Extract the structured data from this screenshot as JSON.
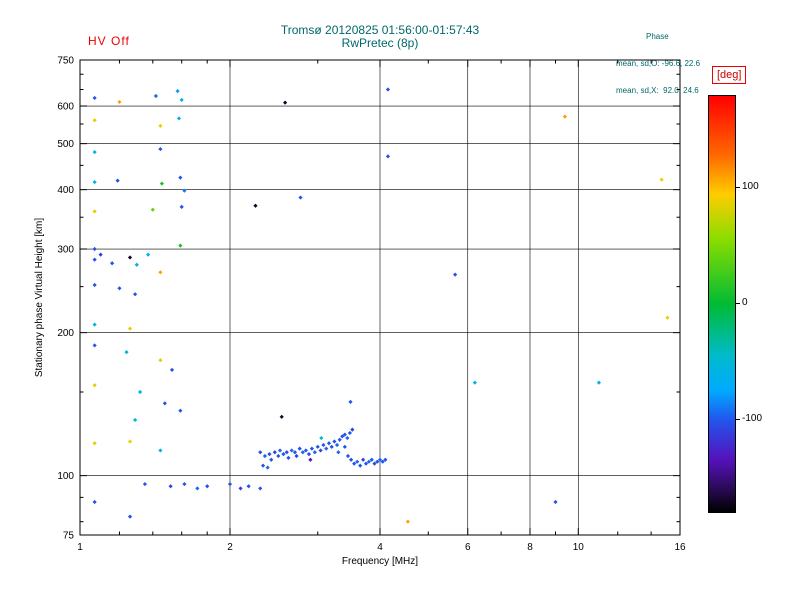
{
  "header": {
    "hv_off": "HV Off"
  },
  "stats": {
    "heading": "Phase",
    "o_line": "mean, sd,O: -96.6, 22.6",
    "x_line": "mean, sd,X:  92.0, 24.6"
  },
  "colors": {
    "accent_red": "#ee0000",
    "title_teal": "#006868",
    "axis_black": "#000000",
    "background": "#ffffff"
  },
  "chart_data": {
    "type": "scatter",
    "title": "Tromsø 20120825 01:56:00-01:57:43",
    "subtitle": "RwPretec (8p)",
    "xlabel": "Frequency [MHz]",
    "ylabel": "Stationary phase Virtual Height [km]",
    "xscale": "log",
    "yscale": "log",
    "xlim": [
      1,
      16
    ],
    "ylim": [
      75,
      750
    ],
    "x_major_ticks": [
      1,
      2,
      4,
      6,
      8,
      10,
      16
    ],
    "x_grid": [
      2,
      4,
      6,
      8,
      10
    ],
    "x_minor_ticks": [
      1.2,
      1.4,
      1.6,
      1.8,
      3,
      5,
      7,
      9,
      12,
      14
    ],
    "y_major_ticks": [
      75,
      100,
      200,
      300,
      400,
      500,
      600,
      750
    ],
    "y_grid": [
      100,
      200,
      300,
      400,
      500,
      600
    ],
    "y_minor_ticks": [
      80,
      90,
      150,
      250,
      350,
      450,
      550,
      650,
      700
    ],
    "legend_position": "right-colorbar",
    "grid": true,
    "colorbar": {
      "label": "[deg]",
      "ticks": [
        100,
        0,
        -100
      ],
      "min": -180,
      "max": 180,
      "color_map": [
        [
          180,
          "#ff0000"
        ],
        [
          130,
          "#ff6600"
        ],
        [
          95,
          "#ffcc00"
        ],
        [
          55,
          "#88dd00"
        ],
        [
          0,
          "#00bb33"
        ],
        [
          -45,
          "#00bbcc"
        ],
        [
          -75,
          "#00aaff"
        ],
        [
          -100,
          "#2255ee"
        ],
        [
          -135,
          "#5511bb"
        ],
        [
          -160,
          "#2a0a55"
        ],
        [
          -180,
          "#000000"
        ]
      ]
    },
    "points_format": [
      "frequency_MHz",
      "virtual_height_km",
      "phase_deg"
    ],
    "points": [
      [
        1.07,
        624,
        -100
      ],
      [
        1.2,
        612,
        110
      ],
      [
        1.42,
        630,
        -95
      ],
      [
        1.57,
        645,
        -80
      ],
      [
        1.6,
        618,
        -60
      ],
      [
        1.07,
        560,
        85
      ],
      [
        1.58,
        565,
        -55
      ],
      [
        1.45,
        545,
        90
      ],
      [
        1.07,
        480,
        -60
      ],
      [
        1.45,
        487,
        -100
      ],
      [
        1.07,
        415,
        -60
      ],
      [
        1.19,
        418,
        -100
      ],
      [
        1.46,
        412,
        10
      ],
      [
        1.59,
        424,
        -100
      ],
      [
        1.62,
        398,
        -90
      ],
      [
        1.07,
        360,
        85
      ],
      [
        1.4,
        363,
        40
      ],
      [
        1.6,
        368,
        -100
      ],
      [
        2.25,
        370,
        -170
      ],
      [
        2.77,
        385,
        -100
      ],
      [
        1.07,
        300,
        -100
      ],
      [
        1.1,
        292,
        -110
      ],
      [
        1.26,
        288,
        -170
      ],
      [
        1.37,
        292,
        -60
      ],
      [
        1.59,
        305,
        10
      ],
      [
        1.07,
        285,
        -100
      ],
      [
        1.16,
        280,
        -100
      ],
      [
        1.3,
        278,
        -60
      ],
      [
        1.45,
        268,
        110
      ],
      [
        1.07,
        252,
        -100
      ],
      [
        1.2,
        248,
        -100
      ],
      [
        1.29,
        241,
        -100
      ],
      [
        1.07,
        208,
        -60
      ],
      [
        1.26,
        204,
        85
      ],
      [
        1.07,
        188,
        -100
      ],
      [
        1.24,
        182,
        -60
      ],
      [
        1.45,
        175,
        85
      ],
      [
        1.53,
        167,
        -100
      ],
      [
        1.07,
        155,
        85
      ],
      [
        1.32,
        150,
        -60
      ],
      [
        1.48,
        142,
        -100
      ],
      [
        1.59,
        137,
        -100
      ],
      [
        1.29,
        131,
        -55
      ],
      [
        1.07,
        117,
        85
      ],
      [
        1.26,
        118,
        90
      ],
      [
        1.45,
        113,
        -60
      ],
      [
        1.07,
        88,
        -100
      ],
      [
        1.26,
        82,
        -100
      ],
      [
        2.58,
        610,
        -170
      ],
      [
        4.15,
        650,
        -100
      ],
      [
        4.15,
        470,
        -100
      ],
      [
        9.4,
        570,
        110
      ],
      [
        14.7,
        420,
        90
      ],
      [
        15.1,
        215,
        90
      ],
      [
        5.66,
        265,
        -100
      ],
      [
        6.2,
        157,
        -60
      ],
      [
        11.0,
        157,
        -60
      ],
      [
        3.49,
        143,
        -100
      ],
      [
        2.54,
        133,
        -170
      ],
      [
        9.0,
        88,
        -100
      ],
      [
        4.55,
        80,
        110
      ],
      [
        1.35,
        96,
        -100
      ],
      [
        1.52,
        95,
        -105
      ],
      [
        1.62,
        96,
        -100
      ],
      [
        1.72,
        94,
        -95
      ],
      [
        1.8,
        95,
        -100
      ],
      [
        2.0,
        96,
        -100
      ],
      [
        2.1,
        94,
        -110
      ],
      [
        2.18,
        95,
        -100
      ],
      [
        2.3,
        94,
        -100
      ],
      [
        2.3,
        112,
        -100
      ],
      [
        2.35,
        110,
        -95
      ],
      [
        2.4,
        111,
        -105
      ],
      [
        2.42,
        108,
        -100
      ],
      [
        2.46,
        112,
        -110
      ],
      [
        2.5,
        110,
        -100
      ],
      [
        2.52,
        113,
        -95
      ],
      [
        2.56,
        111,
        -100
      ],
      [
        2.6,
        112,
        -105
      ],
      [
        2.62,
        109,
        -100
      ],
      [
        2.66,
        113,
        -95
      ],
      [
        2.7,
        112,
        -100
      ],
      [
        2.72,
        110,
        -110
      ],
      [
        2.76,
        114,
        -100
      ],
      [
        2.8,
        112,
        -95
      ],
      [
        2.84,
        113,
        -100
      ],
      [
        2.88,
        111,
        -105
      ],
      [
        2.92,
        114,
        -100
      ],
      [
        2.96,
        112,
        -95
      ],
      [
        3.0,
        115,
        -100
      ],
      [
        3.04,
        113,
        -110
      ],
      [
        3.05,
        120,
        -40
      ],
      [
        3.08,
        116,
        -100
      ],
      [
        3.12,
        114,
        -95
      ],
      [
        3.16,
        117,
        -100
      ],
      [
        3.2,
        115,
        -105
      ],
      [
        3.24,
        118,
        -100
      ],
      [
        3.28,
        116,
        -95
      ],
      [
        3.32,
        119,
        -100
      ],
      [
        3.36,
        121,
        -105
      ],
      [
        3.4,
        122,
        -100
      ],
      [
        3.44,
        120,
        -95
      ],
      [
        3.48,
        123,
        -100
      ],
      [
        3.52,
        125,
        -110
      ],
      [
        3.4,
        115,
        -100
      ],
      [
        3.3,
        112,
        -95
      ],
      [
        3.45,
        110,
        -100
      ],
      [
        3.5,
        108,
        -105
      ],
      [
        3.55,
        106,
        -100
      ],
      [
        3.6,
        107,
        -95
      ],
      [
        3.65,
        105,
        -100
      ],
      [
        3.7,
        108,
        -110
      ],
      [
        3.75,
        106,
        -100
      ],
      [
        3.8,
        107,
        -95
      ],
      [
        3.85,
        108,
        -100
      ],
      [
        3.9,
        106,
        -105
      ],
      [
        3.95,
        107,
        -100
      ],
      [
        4.0,
        108,
        -95
      ],
      [
        4.05,
        107,
        -100
      ],
      [
        4.1,
        108,
        -100
      ],
      [
        2.33,
        105,
        -100
      ],
      [
        2.38,
        104,
        -95
      ],
      [
        2.9,
        108,
        -130
      ]
    ]
  }
}
